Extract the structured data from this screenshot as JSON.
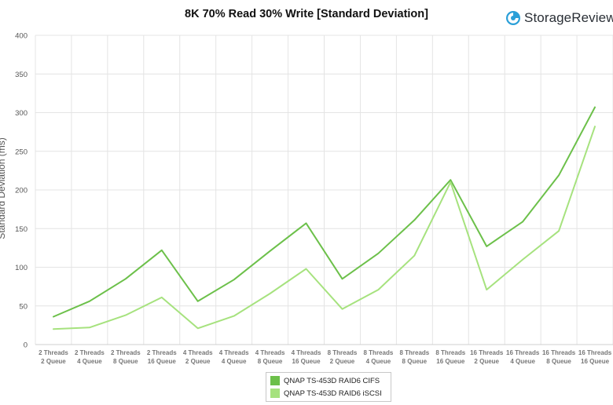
{
  "chart_data": {
    "type": "line",
    "title": "8K 70% Read 30% Write [Standard Deviation]",
    "ylabel": "Standard Deviation (ms)",
    "ylim": [
      0,
      400
    ],
    "yticks": [
      0,
      50,
      100,
      150,
      200,
      250,
      300,
      350,
      400
    ],
    "grid": true,
    "legend_position": "bottom",
    "categories": [
      [
        "2 Threads",
        "2 Queue"
      ],
      [
        "2 Threads",
        "4 Queue"
      ],
      [
        "2 Threads",
        "8 Queue"
      ],
      [
        "2 Threads",
        "16 Queue"
      ],
      [
        "4 Threads",
        "2 Queue"
      ],
      [
        "4 Threads",
        "4 Queue"
      ],
      [
        "4 Threads",
        "8 Queue"
      ],
      [
        "4 Threads",
        "16 Queue"
      ],
      [
        "8 Threads",
        "2 Queue"
      ],
      [
        "8 Threads",
        "4 Queue"
      ],
      [
        "8 Threads",
        "8 Queue"
      ],
      [
        "8 Threads",
        "16 Queue"
      ],
      [
        "16 Threads",
        "2 Queue"
      ],
      [
        "16 Threads",
        "4 Queue"
      ],
      [
        "16 Threads",
        "8 Queue"
      ],
      [
        "16 Threads",
        "16 Queue"
      ]
    ],
    "series": [
      {
        "name": "QNAP TS-453D RAID6 CIFS",
        "color": "#6cc04a",
        "values": [
          36,
          56,
          85,
          122,
          56,
          84,
          121,
          157,
          85,
          118,
          161,
          213,
          127,
          159,
          219,
          307
        ]
      },
      {
        "name": "QNAP TS-453D RAID6 iSCSI",
        "color": "#a6e27e",
        "values": [
          20,
          22,
          38,
          61,
          21,
          37,
          66,
          98,
          46,
          71,
          115,
          210,
          71,
          110,
          147,
          282
        ]
      }
    ]
  },
  "brand": {
    "name": "StorageReview",
    "icon": "storagereview-logo-icon",
    "color": "#2a9fd8"
  }
}
